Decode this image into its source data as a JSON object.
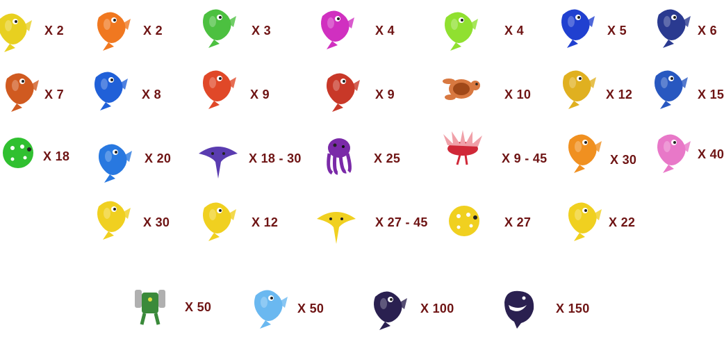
{
  "creatures": [
    {
      "name": "yellow-seahorse-fish",
      "multiplier": "X 2",
      "color": "#e8d020",
      "shape": "fish"
    },
    {
      "name": "clownfish",
      "multiplier": "X 2",
      "color": "#f07820",
      "shape": "fish"
    },
    {
      "name": "green-striped-fish",
      "multiplier": "X 3",
      "color": "#4cc040",
      "shape": "fish"
    },
    {
      "name": "magenta-fish",
      "multiplier": "X 4",
      "color": "#d030c0",
      "shape": "fish"
    },
    {
      "name": "lime-fish",
      "multiplier": "X 4",
      "color": "#90e030",
      "shape": "fish"
    },
    {
      "name": "blue-tang-fish",
      "multiplier": "X 5",
      "color": "#2040d0",
      "shape": "fish"
    },
    {
      "name": "blue-eel",
      "multiplier": "X 6",
      "color": "#2a3a90",
      "shape": "fish"
    },
    {
      "name": "striped-butterfly-fish",
      "multiplier": "X 7",
      "color": "#d05a20",
      "shape": "fish"
    },
    {
      "name": "blue-round-fish",
      "multiplier": "X 8",
      "color": "#2060d8",
      "shape": "fish"
    },
    {
      "name": "red-spotted-fish",
      "multiplier": "X 9",
      "color": "#e04828",
      "shape": "fish"
    },
    {
      "name": "red-lionfish",
      "multiplier": "X 9",
      "color": "#c83828",
      "shape": "fish"
    },
    {
      "name": "sea-turtle",
      "multiplier": "X 10",
      "color": "#d87840",
      "shape": "turtle"
    },
    {
      "name": "moorish-idol-fish",
      "multiplier": "X 12",
      "color": "#e0b020",
      "shape": "fish"
    },
    {
      "name": "blue-marlin",
      "multiplier": "X 15",
      "color": "#2858c0",
      "shape": "fish"
    },
    {
      "name": "green-pufferfish",
      "multiplier": "X 18",
      "color": "#30c030",
      "shape": "puffer"
    },
    {
      "name": "blue-shark",
      "multiplier": "X 20",
      "color": "#2878e0",
      "shape": "fish"
    },
    {
      "name": "purple-manta-ray",
      "multiplier": "X 18 - 30",
      "color": "#5a3cb0",
      "shape": "ray"
    },
    {
      "name": "purple-octopus",
      "multiplier": "X 25",
      "color": "#7a2aa8",
      "shape": "octopus"
    },
    {
      "name": "red-winged-lionfish",
      "multiplier": "X 9 - 45",
      "color": "#d02838",
      "shape": "lion"
    },
    {
      "name": "orange-seahorse",
      "multiplier": "X 30",
      "color": "#f09020",
      "shape": "fish"
    },
    {
      "name": "pink-anglerfish",
      "multiplier": "X 40",
      "color": "#e878c8",
      "shape": "fish"
    },
    {
      "name": "golden-shark",
      "multiplier": "X 30",
      "color": "#f0d020",
      "shape": "fish"
    },
    {
      "name": "golden-whale",
      "multiplier": "X 12",
      "color": "#f0d020",
      "shape": "fish"
    },
    {
      "name": "golden-manta-ray",
      "multiplier": "X 27 - 45",
      "color": "#f0d020",
      "shape": "ray"
    },
    {
      "name": "golden-pufferfish",
      "multiplier": "X 27",
      "color": "#f0d020",
      "shape": "puffer"
    },
    {
      "name": "golden-marlin",
      "multiplier": "X 22",
      "color": "#f0d020",
      "shape": "fish"
    },
    {
      "name": "mech-robot",
      "multiplier": "X 50",
      "color": "#3a8a3a",
      "shape": "robot"
    },
    {
      "name": "crystal-dragon",
      "multiplier": "X 50",
      "color": "#6ab8f0",
      "shape": "fish"
    },
    {
      "name": "dark-shark",
      "multiplier": "X 100",
      "color": "#2a2050",
      "shape": "fish"
    },
    {
      "name": "killer-whale",
      "multiplier": "X 150",
      "color": "#2a2050",
      "shape": "whale"
    }
  ]
}
